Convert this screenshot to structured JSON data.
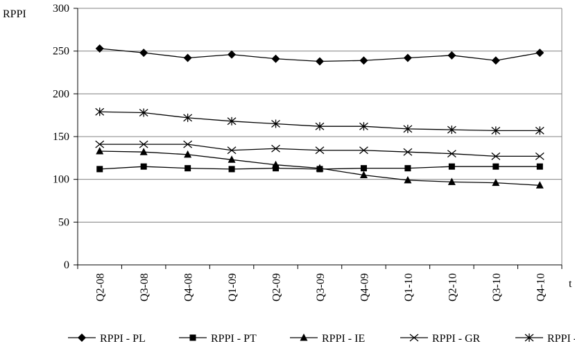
{
  "chart_data": {
    "type": "line",
    "categories": [
      "Q2-08",
      "Q3-08",
      "Q4-08",
      "Q1-09",
      "Q2-09",
      "Q3-09",
      "Q4-09",
      "Q1-10",
      "Q2-10",
      "Q3-10",
      "Q4-10"
    ],
    "series": [
      {
        "name": "RPPI - PL",
        "marker": "diamond",
        "values": [
          253,
          248,
          242,
          246,
          241,
          238,
          239,
          242,
          245,
          239,
          248
        ]
      },
      {
        "name": "RPPI - PT",
        "marker": "square",
        "values": [
          112,
          115,
          113,
          112,
          113,
          112,
          113,
          113,
          115,
          115,
          115
        ]
      },
      {
        "name": "RPPI - IE",
        "marker": "triangle",
        "values": [
          133,
          132,
          129,
          123,
          117,
          113,
          105,
          99,
          97,
          96,
          93
        ]
      },
      {
        "name": "RPPI - GR",
        "marker": "x",
        "values": [
          141,
          141,
          141,
          134,
          136,
          134,
          134,
          132,
          130,
          127,
          127
        ]
      },
      {
        "name": "RPPI - ES",
        "marker": "asterisk",
        "values": [
          179,
          178,
          172,
          168,
          165,
          162,
          162,
          159,
          158,
          157,
          157
        ]
      }
    ],
    "title": "",
    "xlabel": "t",
    "ylabel": "RPPI",
    "ylim": [
      0,
      300
    ],
    "yticks": [
      0,
      50,
      100,
      150,
      200,
      250,
      300
    ],
    "grid": "horizontal",
    "legend_position": "bottom",
    "colors": {
      "line": "#000000",
      "grid": "#808080",
      "axis": "#000000",
      "background": "#ffffff"
    }
  }
}
